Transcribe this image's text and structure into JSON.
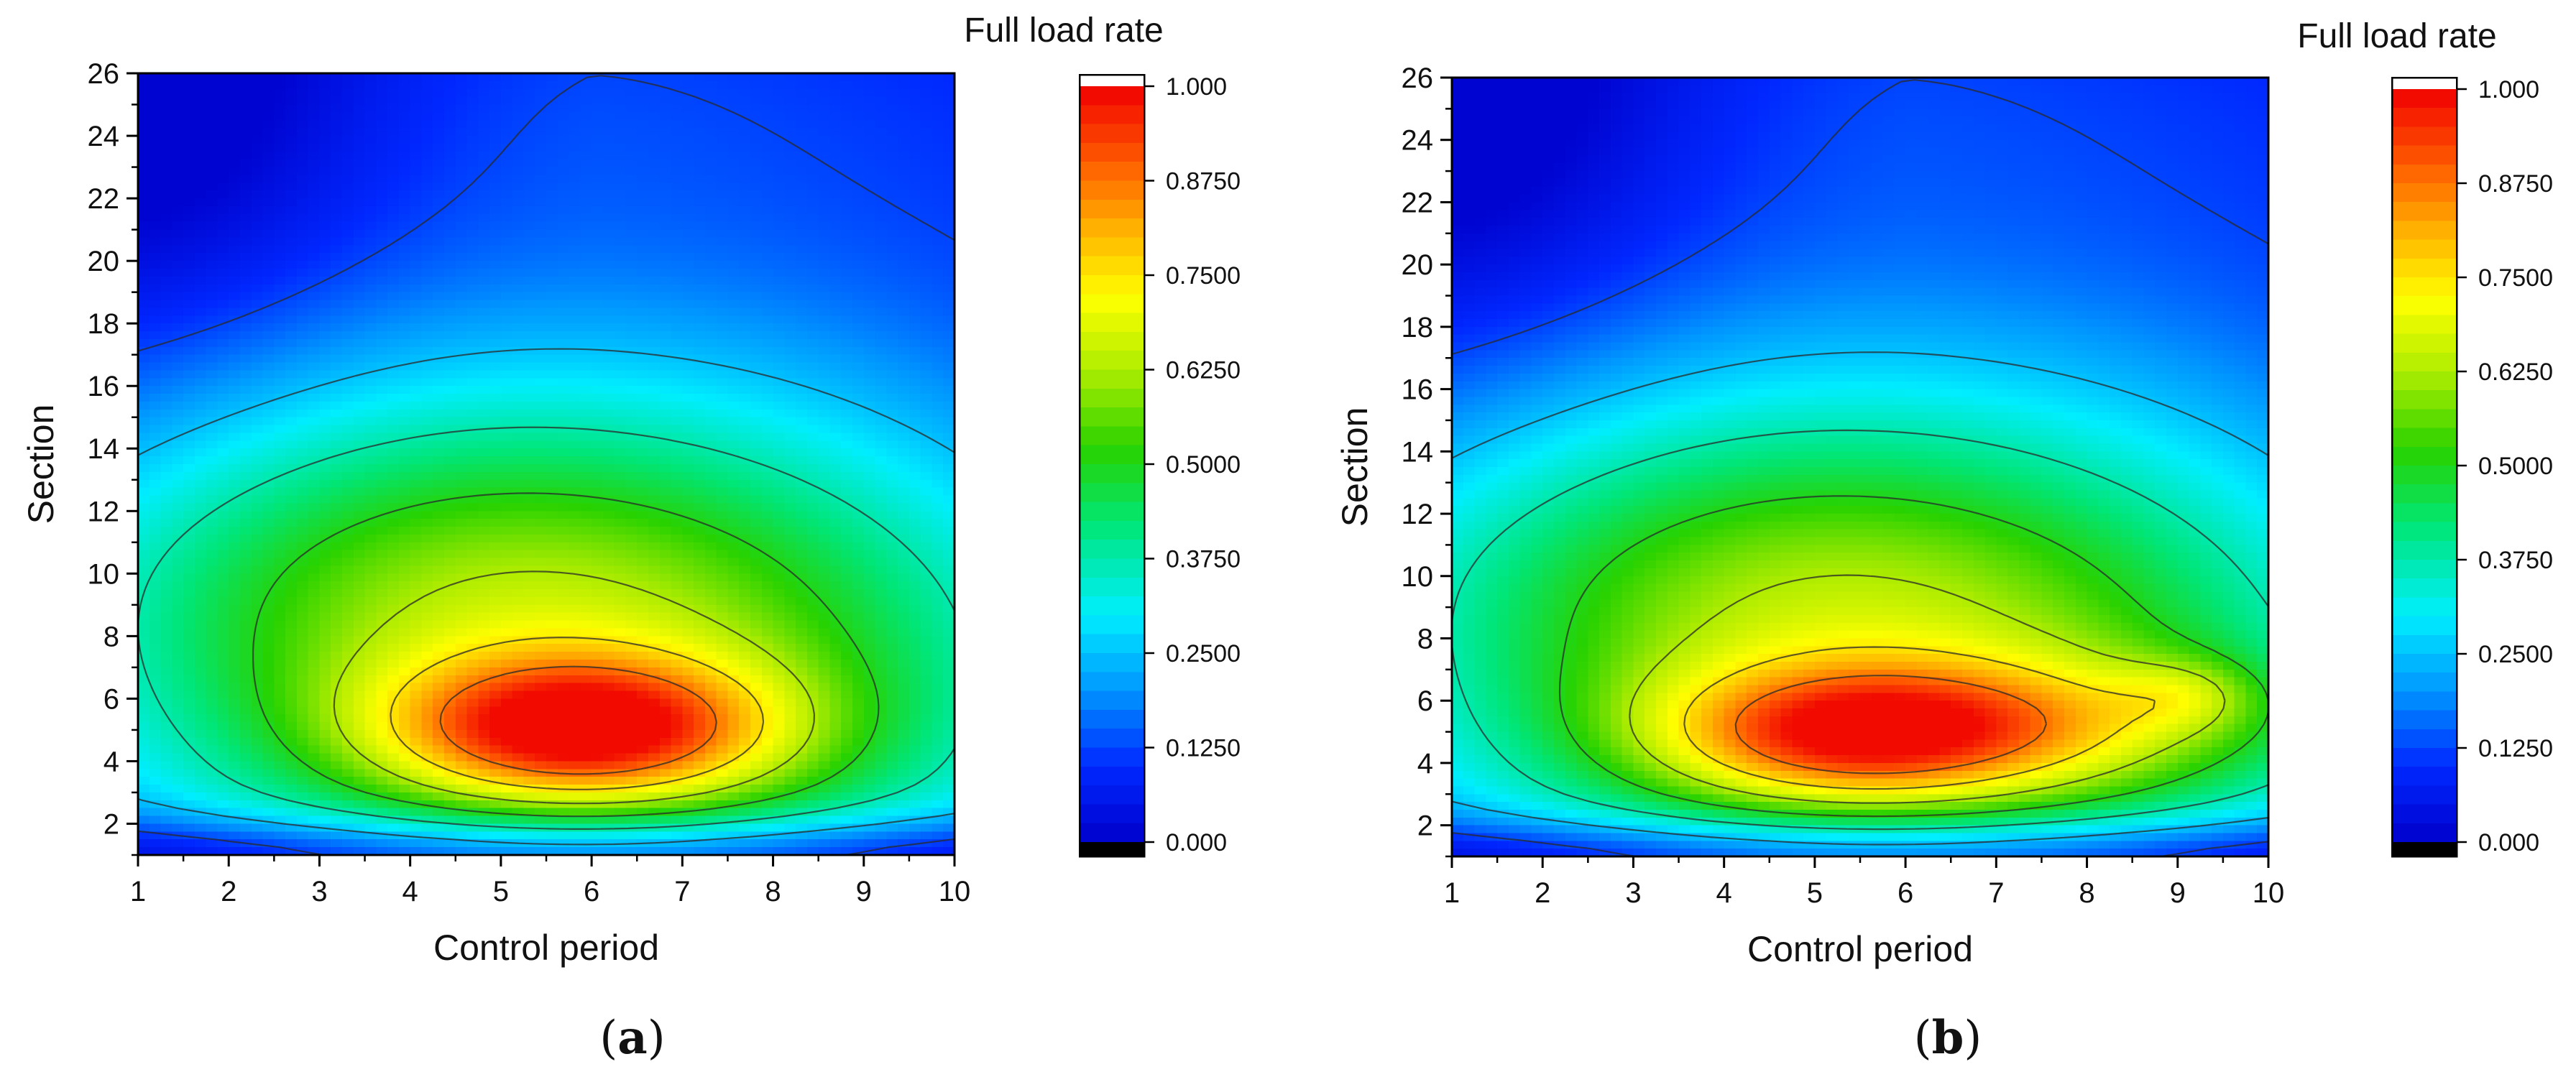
{
  "figure": {
    "panels": [
      {
        "id": "a",
        "label_open": "(",
        "label_letter": "a",
        "label_close": ")"
      },
      {
        "id": "b",
        "label_open": "(",
        "label_letter": "b",
        "label_close": ")"
      }
    ]
  },
  "chart_data": [
    {
      "type": "heatmap",
      "subtype": "filled-contour",
      "panel": "a",
      "xlabel": "Control period",
      "ylabel": "Section",
      "colorbar_title": "Full load rate",
      "xlim": [
        1,
        10
      ],
      "ylim": [
        1,
        26
      ],
      "x_ticks": [
        1,
        2,
        3,
        4,
        5,
        6,
        7,
        8,
        9,
        10
      ],
      "y_ticks": [
        2,
        4,
        6,
        8,
        10,
        12,
        14,
        16,
        18,
        20,
        22,
        24,
        26
      ],
      "colorbar_range": [
        0,
        1
      ],
      "colorbar_ticks": [
        "1.000",
        "0.8750",
        "0.7500",
        "0.6250",
        "0.5000",
        "0.3750",
        "0.2500",
        "0.1250",
        "0.000"
      ],
      "contour_levels": [
        0.125,
        0.25,
        0.375,
        0.5,
        0.625,
        0.75,
        0.875
      ],
      "approx_peak": {
        "x": 6,
        "y": 5,
        "value": 0.96
      },
      "x": [
        1,
        2,
        3,
        4,
        5,
        6,
        7,
        8,
        9,
        10
      ],
      "y": [
        1,
        2,
        3,
        4,
        5,
        6,
        7,
        8,
        9,
        10,
        11,
        12,
        13,
        14,
        15,
        16,
        17,
        18,
        19,
        20,
        21,
        22,
        23,
        24,
        25,
        26
      ]
    },
    {
      "type": "heatmap",
      "subtype": "filled-contour",
      "panel": "b",
      "xlabel": "Control period",
      "ylabel": "Section",
      "colorbar_title": "Full load rate",
      "xlim": [
        1,
        10
      ],
      "ylim": [
        1,
        26
      ],
      "x_ticks": [
        1,
        2,
        3,
        4,
        5,
        6,
        7,
        8,
        9,
        10
      ],
      "y_ticks": [
        2,
        4,
        6,
        8,
        10,
        12,
        14,
        16,
        18,
        20,
        22,
        24,
        26
      ],
      "colorbar_range": [
        0,
        1
      ],
      "colorbar_ticks": [
        "1.000",
        "0.8750",
        "0.7500",
        "0.6250",
        "0.5000",
        "0.3750",
        "0.2500",
        "0.1250",
        "0.000"
      ],
      "contour_levels": [
        0.125,
        0.25,
        0.375,
        0.5,
        0.625,
        0.75,
        0.875
      ],
      "approx_peak": {
        "x": 5,
        "y": 5,
        "value": 0.89
      },
      "x": [
        1,
        2,
        3,
        4,
        5,
        6,
        7,
        8,
        9,
        10
      ],
      "y": [
        1,
        2,
        3,
        4,
        5,
        6,
        7,
        8,
        9,
        10,
        11,
        12,
        13,
        14,
        15,
        16,
        17,
        18,
        19,
        20,
        21,
        22,
        23,
        24,
        25,
        26
      ]
    }
  ]
}
